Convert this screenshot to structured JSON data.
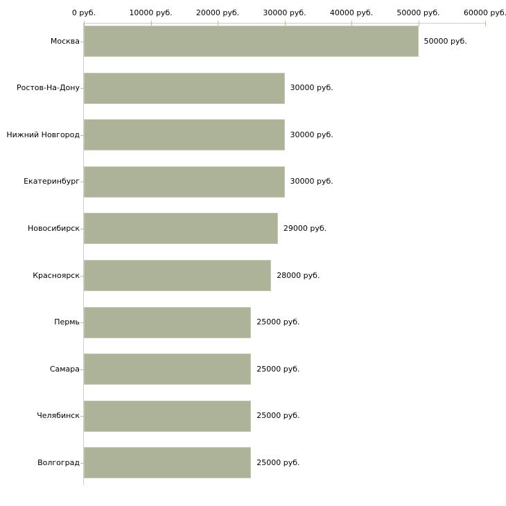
{
  "chart_data": {
    "type": "bar",
    "orientation": "horizontal",
    "title": "",
    "unit": "руб.",
    "categories": [
      "Москва",
      "Ростов-На-Дону",
      "Нижний Новгород",
      "Екатеринбург",
      "Новосибирск",
      "Красноярск",
      "Пермь",
      "Самара",
      "Челябинск",
      "Волгоград"
    ],
    "values": [
      50000,
      30000,
      30000,
      30000,
      29000,
      28000,
      25000,
      25000,
      25000,
      25000
    ],
    "value_labels": [
      "50000 руб.",
      "30000 руб.",
      "30000 руб.",
      "30000 руб.",
      "29000 руб.",
      "28000 руб.",
      "25000 руб.",
      "25000 руб.",
      "25000 руб.",
      "25000 руб."
    ],
    "x_axis": {
      "position": "top",
      "min": 0,
      "max": 60000,
      "ticks": [
        0,
        10000,
        20000,
        30000,
        40000,
        50000,
        60000
      ],
      "tick_labels": [
        "0 руб.",
        "10000 руб.",
        "20000 руб.",
        "30000 руб.",
        "40000 руб.",
        "50000 руб.",
        "60000 руб."
      ]
    },
    "legend": null,
    "grid": false,
    "colors": {
      "background": "#ffffff",
      "bar_fill": "#adb398",
      "bar_border": "#c5c9b1",
      "axis_line": "#cccccc",
      "x_tick_mark": "#b9bd90",
      "y_tick_mark": "#bdb996",
      "text": "#000000"
    }
  }
}
